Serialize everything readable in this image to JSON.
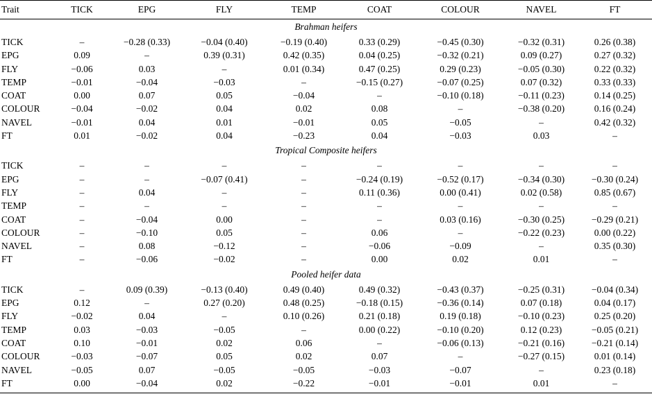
{
  "header": [
    "Trait",
    "TICK",
    "EPG",
    "FLY",
    "TEMP",
    "COAT",
    "COLOUR",
    "NAVEL",
    "FT"
  ],
  "sections": [
    {
      "title": "Brahman heifers",
      "rows": [
        {
          "trait": "TICK",
          "cells": [
            "–",
            "−0.28 (0.33)",
            "−0.04 (0.40)",
            "−0.19 (0.40)",
            "0.33 (0.29)",
            "−0.45 (0.30)",
            "−0.32 (0.31)",
            "0.26 (0.38)"
          ],
          "bold": []
        },
        {
          "trait": "EPG",
          "cells": [
            "0.09",
            "–",
            "0.39 (0.31)",
            "0.42 (0.35)",
            "0.04 (0.25)",
            "−0.32 (0.21)",
            "0.09 (0.27)",
            "0.27 (0.32)"
          ],
          "bold": []
        },
        {
          "trait": "FLY",
          "cells": [
            "−0.06",
            "0.03",
            "–",
            "0.01 (0.34)",
            "0.47 (0.25)",
            "0.29 (0.23)",
            "−0.05 (0.30)",
            "0.22 (0.32)"
          ],
          "bold": []
        },
        {
          "trait": "TEMP",
          "cells": [
            "−0.01",
            "−0.04",
            "−0.03",
            "–",
            "−0.15 (0.27)",
            "−0.07 (0.25)",
            "0.07 (0.32)",
            "0.33 (0.33)"
          ],
          "bold": []
        },
        {
          "trait": "COAT",
          "cells": [
            "0.00",
            "0.07",
            "0.05",
            "−0.04",
            "–",
            "−0.10 (0.18)",
            "−0.11 (0.23)",
            "0.14 (0.25)"
          ],
          "bold": []
        },
        {
          "trait": "COLOUR",
          "cells": [
            "−0.04",
            "−0.02",
            "0.04",
            "0.02",
            "0.08",
            "–",
            "−0.38 (0.20)",
            "0.16 (0.24)"
          ],
          "bold": []
        },
        {
          "trait": "NAVEL",
          "cells": [
            "−0.01",
            "0.04",
            "0.01",
            "−0.01",
            "0.05",
            "−0.05",
            "–",
            "0.42 (0.32)"
          ],
          "bold": []
        },
        {
          "trait": "FT",
          "cells": [
            "0.01",
            "−0.02",
            "0.04",
            "−0.23",
            "0.04",
            "−0.03",
            "0.03",
            "–"
          ],
          "bold": [
            3
          ]
        }
      ]
    },
    {
      "title": "Tropical Composite heifers",
      "rows": [
        {
          "trait": "TICK",
          "cells": [
            "–",
            "–",
            "–",
            "–",
            "–",
            "–",
            "–",
            "–"
          ],
          "bold": []
        },
        {
          "trait": "EPG",
          "cells": [
            "–",
            "–",
            "−0.07 (0.41)",
            "–",
            "−0.24 (0.19)",
            "−0.52 (0.17)",
            "−0.34 (0.30)",
            "−0.30 (0.24)"
          ],
          "bold": [
            5
          ]
        },
        {
          "trait": "FLY",
          "cells": [
            "–",
            "0.04",
            "–",
            "–",
            "0.11 (0.36)",
            "0.00 (0.41)",
            "0.02 (0.58)",
            "0.85 (0.67)"
          ],
          "bold": []
        },
        {
          "trait": "TEMP",
          "cells": [
            "–",
            "–",
            "–",
            "–",
            "–",
            "–",
            "–",
            "–"
          ],
          "bold": []
        },
        {
          "trait": "COAT",
          "cells": [
            "–",
            "−0.04",
            "0.00",
            "–",
            "–",
            "0.03 (0.16)",
            "−0.30 (0.25)",
            "−0.29 (0.21)"
          ],
          "bold": []
        },
        {
          "trait": "COLOUR",
          "cells": [
            "–",
            "−0.10",
            "0.05",
            "–",
            "0.06",
            "–",
            "−0.22 (0.23)",
            "0.00 (0.22)"
          ],
          "bold": [
            1
          ]
        },
        {
          "trait": "NAVEL",
          "cells": [
            "–",
            "0.08",
            "−0.12",
            "–",
            "−0.06",
            "−0.09",
            "–",
            "0.35 (0.30)"
          ],
          "bold": [
            2,
            5
          ]
        },
        {
          "trait": "FT",
          "cells": [
            "–",
            "−0.06",
            "−0.02",
            "–",
            "0.00",
            "0.02",
            "0.01",
            "–"
          ],
          "bold": []
        }
      ]
    },
    {
      "title": "Pooled heifer data",
      "rows": [
        {
          "trait": "TICK",
          "cells": [
            "–",
            "0.09 (0.39)",
            "−0.13 (0.40)",
            "0.49 (0.40)",
            "0.49 (0.32)",
            "−0.43 (0.37)",
            "−0.25 (0.31)",
            "−0.04 (0.34)"
          ],
          "bold": []
        },
        {
          "trait": "EPG",
          "cells": [
            "0.12",
            "–",
            "0.27 (0.20)",
            "0.48 (0.25)",
            "−0.18 (0.15)",
            "−0.36 (0.14)",
            "0.07 (0.18)",
            "0.04 (0.17)"
          ],
          "bold": [
            0,
            5
          ]
        },
        {
          "trait": "FLY",
          "cells": [
            "−0.02",
            "0.04",
            "–",
            "0.10 (0.26)",
            "0.21 (0.18)",
            "0.19 (0.18)",
            "−0.10 (0.23)",
            "0.25 (0.20)"
          ],
          "bold": []
        },
        {
          "trait": "TEMP",
          "cells": [
            "0.03",
            "−0.03",
            "−0.05",
            "–",
            "0.00 (0.22)",
            "−0.10 (0.20)",
            "0.12 (0.23)",
            "−0.05 (0.21)"
          ],
          "bold": []
        },
        {
          "trait": "COAT",
          "cells": [
            "0.10",
            "−0.01",
            "0.02",
            "0.06",
            "–",
            "−0.06 (0.13)",
            "−0.21 (0.16)",
            "−0.21 (0.14)"
          ],
          "bold": [
            0
          ]
        },
        {
          "trait": "COLOUR",
          "cells": [
            "−0.03",
            "−0.07",
            "0.05",
            "0.02",
            "0.07",
            "–",
            "−0.27 (0.15)",
            "0.01 (0.14)"
          ],
          "bold": [
            1
          ]
        },
        {
          "trait": "NAVEL",
          "cells": [
            "−0.05",
            "0.07",
            "−0.05",
            "−0.05",
            "−0.03",
            "−0.07",
            "–",
            "0.23 (0.18)"
          ],
          "bold": [
            1,
            5
          ]
        },
        {
          "trait": "FT",
          "cells": [
            "0.00",
            "−0.04",
            "0.02",
            "−0.22",
            "−0.01",
            "−0.01",
            "0.01",
            "–"
          ],
          "bold": [
            3
          ]
        }
      ]
    }
  ]
}
